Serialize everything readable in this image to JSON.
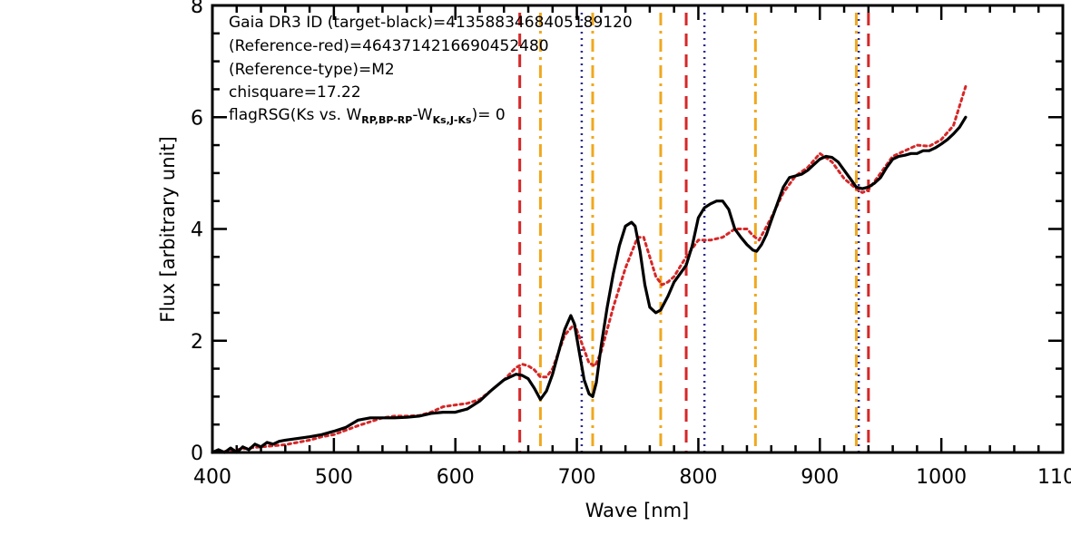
{
  "chart_data": {
    "type": "line",
    "title": "",
    "xlabel": "Wave [nm]",
    "ylabel": "Flux [arbitrary unit]",
    "xlim": [
      400,
      1100
    ],
    "ylim": [
      0,
      8
    ],
    "x_ticks": [
      400,
      500,
      600,
      700,
      800,
      900,
      1000,
      1100
    ],
    "x_tick_labels": [
      "400",
      "500",
      "600",
      "700",
      "800",
      "900",
      "1000",
      "1100"
    ],
    "y_ticks": [
      0,
      2,
      4,
      6,
      8
    ],
    "y_tick_labels": [
      "0",
      "2",
      "4",
      "6",
      "8"
    ],
    "grid": false,
    "annotations": {
      "line1": "Gaia DR3 ID (target-black)=4135883468405189120",
      "line2": "(Reference-red)=4643714216690452480",
      "line3": "(Reference-type)=M2",
      "line4": "chisquare=17.22",
      "line5_prefix": "flagRSG(Ks vs. W",
      "line5_sub1": "RP,BP-RP",
      "line5_mid": "-W",
      "line5_sub2": "Ks,J-Ks",
      "line5_suffix": ")=  0"
    },
    "vertical_lines": [
      {
        "x": 653,
        "style": "red-dashed"
      },
      {
        "x": 670,
        "style": "orange-dashdot"
      },
      {
        "x": 704,
        "style": "navy-dotted"
      },
      {
        "x": 713,
        "style": "orange-dashdot"
      },
      {
        "x": 769,
        "style": "orange-dashdot"
      },
      {
        "x": 790,
        "style": "red-dashed"
      },
      {
        "x": 805,
        "style": "navy-dotted"
      },
      {
        "x": 847,
        "style": "orange-dashdot"
      },
      {
        "x": 930,
        "style": "orange-dashdot"
      },
      {
        "x": 932,
        "style": "navy-dotted"
      },
      {
        "x": 940,
        "style": "red-dashed"
      }
    ],
    "line_styles": {
      "red-dashed": {
        "color": "#d62728",
        "dash": "14,9",
        "width": 3
      },
      "orange-dashdot": {
        "color": "#f0a81e",
        "dash": "14,6,3,6",
        "width": 3
      },
      "navy-dotted": {
        "color": "#2b2b8c",
        "dash": "2,5",
        "width": 2.5
      }
    },
    "series": [
      {
        "color": "#000000",
        "style": "solid",
        "x": [
          400,
          405,
          410,
          415,
          420,
          425,
          430,
          435,
          440,
          445,
          450,
          455,
          460,
          470,
          480,
          490,
          500,
          510,
          520,
          530,
          540,
          550,
          560,
          570,
          580,
          590,
          600,
          610,
          620,
          630,
          640,
          650,
          655,
          660,
          665,
          670,
          675,
          680,
          685,
          690,
          695,
          698,
          702,
          706,
          710,
          713,
          716,
          720,
          725,
          730,
          735,
          740,
          745,
          748,
          752,
          756,
          760,
          765,
          769,
          775,
          780,
          785,
          790,
          795,
          800,
          805,
          810,
          815,
          820,
          825,
          830,
          835,
          840,
          845,
          848,
          852,
          856,
          860,
          865,
          870,
          875,
          880,
          885,
          890,
          895,
          900,
          905,
          910,
          915,
          920,
          925,
          930,
          935,
          940,
          945,
          950,
          955,
          960,
          965,
          970,
          975,
          980,
          985,
          990,
          995,
          1000,
          1005,
          1010,
          1015,
          1020
        ],
        "y": [
          0.0,
          0.05,
          0.0,
          0.08,
          0.0,
          0.1,
          0.05,
          0.15,
          0.1,
          0.18,
          0.15,
          0.2,
          0.22,
          0.25,
          0.28,
          0.32,
          0.38,
          0.45,
          0.58,
          0.62,
          0.62,
          0.62,
          0.63,
          0.65,
          0.7,
          0.72,
          0.72,
          0.78,
          0.92,
          1.12,
          1.3,
          1.4,
          1.38,
          1.32,
          1.15,
          0.95,
          1.1,
          1.4,
          1.8,
          2.2,
          2.45,
          2.3,
          1.8,
          1.3,
          1.05,
          1.0,
          1.25,
          1.9,
          2.6,
          3.2,
          3.7,
          4.05,
          4.12,
          4.05,
          3.6,
          3.0,
          2.6,
          2.5,
          2.55,
          2.8,
          3.05,
          3.2,
          3.35,
          3.7,
          4.2,
          4.38,
          4.45,
          4.5,
          4.5,
          4.35,
          4.0,
          3.85,
          3.72,
          3.62,
          3.6,
          3.72,
          3.9,
          4.15,
          4.45,
          4.75,
          4.92,
          4.95,
          4.98,
          5.05,
          5.15,
          5.25,
          5.3,
          5.28,
          5.2,
          5.05,
          4.9,
          4.75,
          4.72,
          4.75,
          4.82,
          4.92,
          5.1,
          5.25,
          5.3,
          5.32,
          5.35,
          5.35,
          5.4,
          5.4,
          5.45,
          5.52,
          5.6,
          5.7,
          5.82,
          6.0
        ]
      },
      {
        "color": "#d62728",
        "style": "dotted",
        "x": [
          400,
          410,
          420,
          430,
          440,
          450,
          460,
          470,
          480,
          490,
          500,
          510,
          520,
          530,
          540,
          550,
          560,
          570,
          580,
          590,
          600,
          610,
          620,
          630,
          640,
          650,
          655,
          660,
          665,
          670,
          675,
          680,
          690,
          698,
          705,
          710,
          715,
          720,
          730,
          740,
          750,
          755,
          760,
          765,
          770,
          775,
          780,
          790,
          800,
          810,
          820,
          830,
          840,
          845,
          850,
          860,
          870,
          880,
          890,
          900,
          910,
          920,
          930,
          935,
          940,
          950,
          960,
          970,
          980,
          990,
          1000,
          1010,
          1020
        ],
        "y": [
          0.0,
          0.02,
          0.05,
          0.08,
          0.1,
          0.12,
          0.14,
          0.18,
          0.22,
          0.28,
          0.32,
          0.4,
          0.48,
          0.55,
          0.62,
          0.65,
          0.65,
          0.66,
          0.72,
          0.82,
          0.85,
          0.88,
          0.95,
          1.12,
          1.3,
          1.52,
          1.58,
          1.55,
          1.48,
          1.35,
          1.35,
          1.5,
          2.1,
          2.3,
          1.9,
          1.6,
          1.55,
          1.8,
          2.6,
          3.3,
          3.85,
          3.85,
          3.5,
          3.15,
          3.0,
          3.05,
          3.15,
          3.5,
          3.8,
          3.8,
          3.85,
          4.0,
          4.0,
          3.88,
          3.8,
          4.2,
          4.65,
          4.95,
          5.1,
          5.35,
          5.2,
          4.9,
          4.72,
          4.65,
          4.7,
          5.0,
          5.3,
          5.4,
          5.5,
          5.48,
          5.6,
          5.85,
          6.55
        ]
      }
    ]
  }
}
